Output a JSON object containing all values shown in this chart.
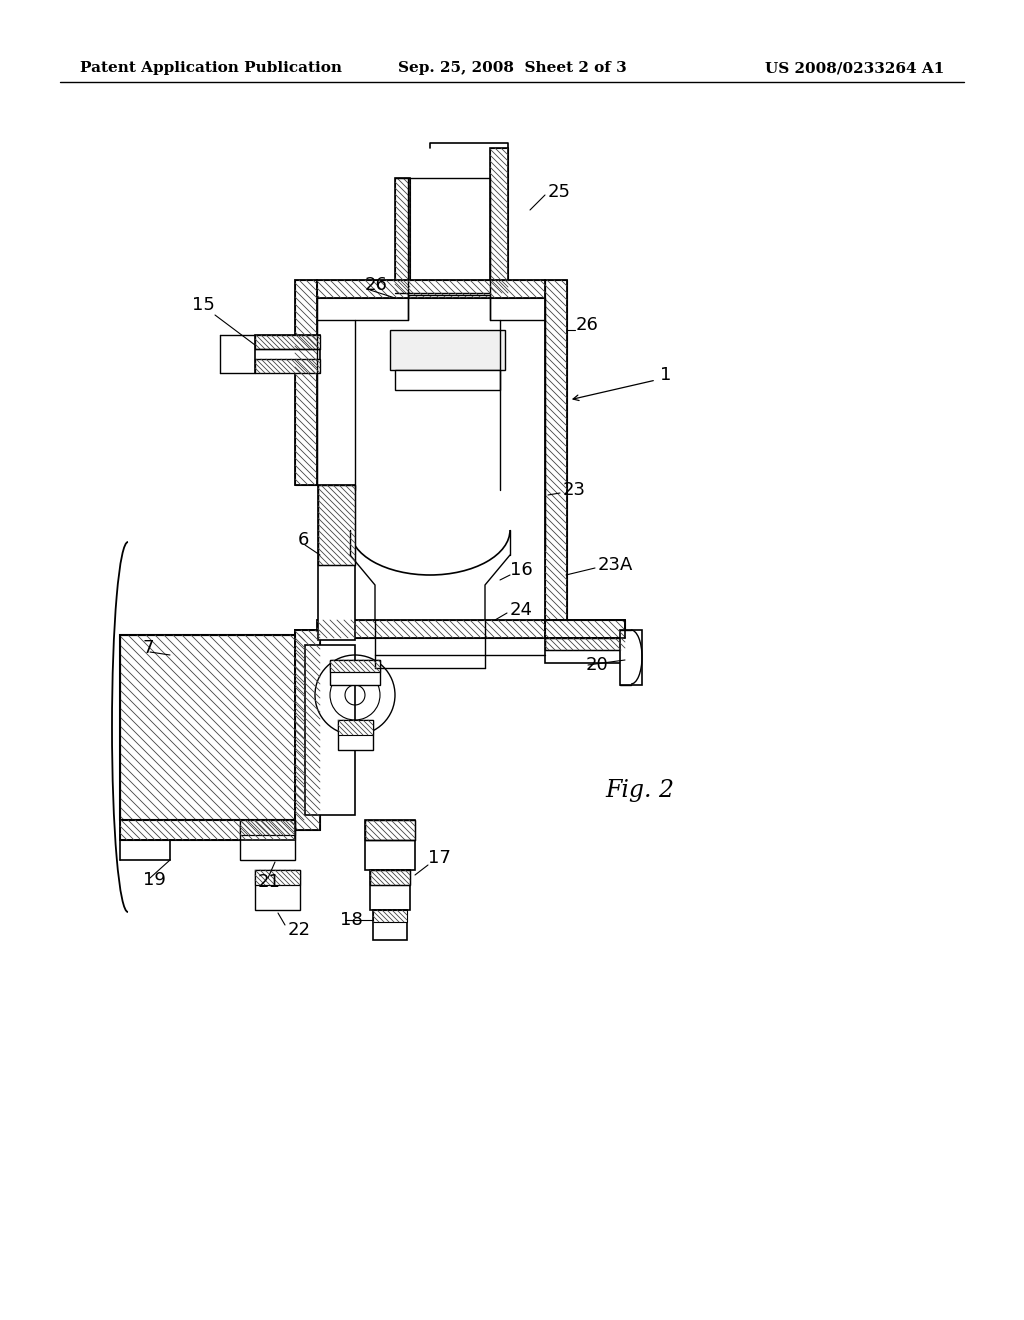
{
  "background_color": "#ffffff",
  "header_left": "Patent Application Publication",
  "header_center": "Sep. 25, 2008  Sheet 2 of 3",
  "header_right": "US 2008/0233264 A1",
  "figure_label": "Fig. 2",
  "line_color": "#000000",
  "line_width": 1.5,
  "header_fontsize": 11,
  "label_fontsize": 13,
  "hatch_color": "#555555"
}
